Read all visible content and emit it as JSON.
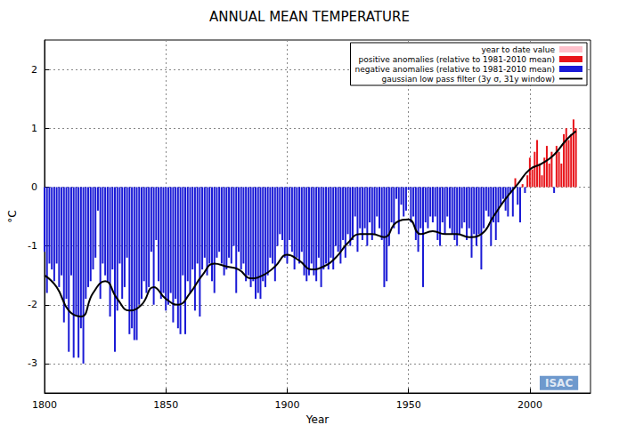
{
  "chart_data": {
    "type": "bar",
    "title": "ANNUAL MEAN TEMPERATURE",
    "x_label": "Year",
    "y_label": "°C",
    "xlim": [
      1800,
      2025
    ],
    "xticks": [
      1800,
      1850,
      1900,
      1950,
      2000
    ],
    "ylim": [
      -3.5,
      2.5
    ],
    "yticks": [
      -3,
      -2,
      -1,
      0,
      1,
      2
    ],
    "grid": true,
    "legend": "upper right",
    "series": [
      {
        "name": "year to date value",
        "color": "#ffc0cb",
        "x": [],
        "values": []
      },
      {
        "name": "positive anomalies (relative to 1981-2010 mean)",
        "color": "#e8141a",
        "x": [
          1994,
          1997,
          1999,
          2000,
          2001,
          2002,
          2003,
          2004,
          2005,
          2006,
          2007,
          2008,
          2009,
          2011,
          2012,
          2013,
          2014,
          2015,
          2016,
          2017,
          2018,
          2019
        ],
        "values": [
          0.15,
          0.05,
          0.2,
          0.5,
          0.3,
          0.6,
          0.8,
          0.4,
          0.2,
          0.5,
          0.7,
          0.4,
          0.6,
          0.7,
          0.6,
          0.4,
          0.9,
          1.0,
          0.8,
          0.9,
          1.15,
          1.0
        ]
      },
      {
        "name": "negative anomalies (relative to 1981-2010 mean)",
        "color": "#1a1ad6",
        "x": [
          1800,
          1801,
          1802,
          1803,
          1804,
          1805,
          1806,
          1807,
          1808,
          1809,
          1810,
          1811,
          1812,
          1813,
          1814,
          1815,
          1816,
          1817,
          1818,
          1819,
          1820,
          1821,
          1822,
          1823,
          1824,
          1825,
          1826,
          1827,
          1828,
          1829,
          1830,
          1831,
          1832,
          1833,
          1834,
          1835,
          1836,
          1837,
          1838,
          1839,
          1840,
          1841,
          1842,
          1843,
          1844,
          1845,
          1846,
          1847,
          1848,
          1849,
          1850,
          1851,
          1852,
          1853,
          1854,
          1855,
          1856,
          1857,
          1858,
          1859,
          1860,
          1861,
          1862,
          1863,
          1864,
          1865,
          1866,
          1867,
          1868,
          1869,
          1870,
          1871,
          1872,
          1873,
          1874,
          1875,
          1876,
          1877,
          1878,
          1879,
          1880,
          1881,
          1882,
          1883,
          1884,
          1885,
          1886,
          1887,
          1888,
          1889,
          1890,
          1891,
          1892,
          1893,
          1894,
          1895,
          1896,
          1897,
          1898,
          1899,
          1900,
          1901,
          1902,
          1903,
          1904,
          1905,
          1906,
          1907,
          1908,
          1909,
          1910,
          1911,
          1912,
          1913,
          1914,
          1915,
          1916,
          1917,
          1918,
          1919,
          1920,
          1921,
          1922,
          1923,
          1924,
          1925,
          1926,
          1927,
          1928,
          1929,
          1930,
          1931,
          1932,
          1933,
          1934,
          1935,
          1936,
          1937,
          1938,
          1939,
          1940,
          1941,
          1942,
          1943,
          1944,
          1945,
          1946,
          1947,
          1948,
          1949,
          1950,
          1951,
          1952,
          1953,
          1954,
          1955,
          1956,
          1957,
          1958,
          1959,
          1960,
          1961,
          1962,
          1963,
          1964,
          1965,
          1966,
          1967,
          1968,
          1969,
          1970,
          1971,
          1972,
          1973,
          1974,
          1975,
          1976,
          1977,
          1978,
          1979,
          1980,
          1981,
          1982,
          1983,
          1984,
          1985,
          1986,
          1987,
          1988,
          1989,
          1990,
          1991,
          1992,
          1993,
          1995,
          1996,
          1998,
          2010
        ],
        "values": [
          -1.1,
          -1.8,
          -1.3,
          -1.4,
          -1.6,
          -1.3,
          -1.7,
          -1.5,
          -2.3,
          -1.9,
          -2.8,
          -1.5,
          -2.9,
          -2.2,
          -2.9,
          -2.4,
          -3.0,
          -1.9,
          -1.7,
          -1.6,
          -1.4,
          -1.2,
          -0.4,
          -1.9,
          -1.3,
          -1.5,
          -1.6,
          -2.2,
          -1.4,
          -2.8,
          -2.1,
          -1.3,
          -1.9,
          -1.7,
          -1.2,
          -2.5,
          -2.4,
          -2.6,
          -2.6,
          -2.0,
          -1.9,
          -1.6,
          -1.8,
          -1.7,
          -1.1,
          -2.0,
          -0.9,
          -1.6,
          -1.9,
          -1.8,
          -2.1,
          -2.0,
          -1.8,
          -2.3,
          -1.9,
          -2.4,
          -2.5,
          -1.5,
          -2.5,
          -1.6,
          -1.8,
          -1.4,
          -2.1,
          -1.3,
          -2.2,
          -1.4,
          -1.2,
          -1.5,
          -1.3,
          -1.6,
          -1.8,
          -1.2,
          -1.1,
          -1.3,
          -1.5,
          -1.4,
          -1.2,
          -1.3,
          -1.0,
          -1.8,
          -1.1,
          -1.4,
          -1.3,
          -1.6,
          -1.5,
          -1.7,
          -1.6,
          -1.9,
          -1.8,
          -1.9,
          -1.6,
          -1.7,
          -1.5,
          -1.2,
          -1.3,
          -1.6,
          -1.0,
          -0.8,
          -0.9,
          -1.2,
          -1.3,
          -0.9,
          -1.1,
          -1.4,
          -1.2,
          -1.3,
          -1.1,
          -1.5,
          -1.6,
          -1.5,
          -1.3,
          -1.5,
          -1.6,
          -1.2,
          -1.7,
          -1.4,
          -1.3,
          -1.4,
          -1.2,
          -1.4,
          -1.0,
          -1.1,
          -1.3,
          -0.9,
          -1.2,
          -0.8,
          -1.0,
          -0.9,
          -0.5,
          -1.1,
          -0.7,
          -0.9,
          -0.7,
          -1.0,
          -0.6,
          -0.9,
          -0.8,
          -0.5,
          -0.7,
          -0.9,
          -1.7,
          -1.6,
          -1.0,
          -0.6,
          -0.7,
          -0.2,
          -0.8,
          -0.3,
          -0.5,
          -0.4,
          -0.05,
          -0.6,
          -0.5,
          -0.9,
          -1.1,
          -0.7,
          -1.7,
          -0.6,
          -0.7,
          -0.5,
          -0.6,
          -0.5,
          -0.9,
          -1.0,
          -0.6,
          -0.8,
          -0.5,
          -0.7,
          -0.8,
          -0.9,
          -1.0,
          -0.8,
          -0.7,
          -0.6,
          -0.9,
          -0.7,
          -1.2,
          -0.8,
          -1.0,
          -0.8,
          -1.4,
          -0.7,
          -0.4,
          -0.5,
          -1.0,
          -0.6,
          -0.9,
          -0.6,
          -0.3,
          -0.2,
          -0.4,
          -0.5,
          -0.1,
          -0.5,
          -0.3,
          -0.6,
          -0.1,
          -0.1
        ]
      },
      {
        "name": "gaussian low pass filter (3y σ, 31y window)",
        "type": "line",
        "color": "#000000",
        "x": [
          1800,
          1805,
          1810,
          1815,
          1820,
          1825,
          1830,
          1835,
          1840,
          1845,
          1850,
          1855,
          1860,
          1865,
          1870,
          1875,
          1880,
          1885,
          1890,
          1895,
          1900,
          1905,
          1910,
          1915,
          1920,
          1925,
          1930,
          1935,
          1940,
          1945,
          1950,
          1955,
          1960,
          1965,
          1970,
          1975,
          1980,
          1985,
          1990,
          1995,
          2000,
          2005,
          2010,
          2015,
          2019
        ],
        "values": [
          -1.5,
          -1.7,
          -2.1,
          -2.2,
          -1.8,
          -1.6,
          -1.9,
          -2.1,
          -2.0,
          -1.7,
          -1.9,
          -2.0,
          -1.8,
          -1.5,
          -1.3,
          -1.35,
          -1.4,
          -1.55,
          -1.5,
          -1.35,
          -1.15,
          -1.25,
          -1.4,
          -1.35,
          -1.2,
          -0.95,
          -0.8,
          -0.8,
          -0.85,
          -0.6,
          -0.55,
          -0.8,
          -0.75,
          -0.8,
          -0.8,
          -0.85,
          -0.8,
          -0.5,
          -0.2,
          0.05,
          0.3,
          0.4,
          0.55,
          0.8,
          0.95
        ]
      }
    ],
    "annotations": [
      {
        "text": "ISAC",
        "x": 2012,
        "y": -3.33
      }
    ]
  }
}
